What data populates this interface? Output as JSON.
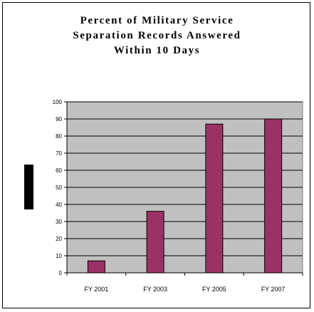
{
  "chart_data": {
    "type": "bar",
    "title_lines": [
      "Percent of Military Service",
      "Separation Records Answered",
      "Within 10 Days"
    ],
    "xlabel": "",
    "ylabel": "",
    "categories": [
      "FY 2001",
      "FY 2003",
      "FY 2005",
      "FY 2007"
    ],
    "values": [
      7,
      36,
      87,
      90
    ],
    "ylim": [
      0,
      100
    ],
    "yticks": [
      0,
      10,
      20,
      30,
      40,
      50,
      60,
      70,
      80,
      90,
      100
    ],
    "grid": true,
    "bar_color": "#993366",
    "plot_background": "#c0c0c0"
  }
}
